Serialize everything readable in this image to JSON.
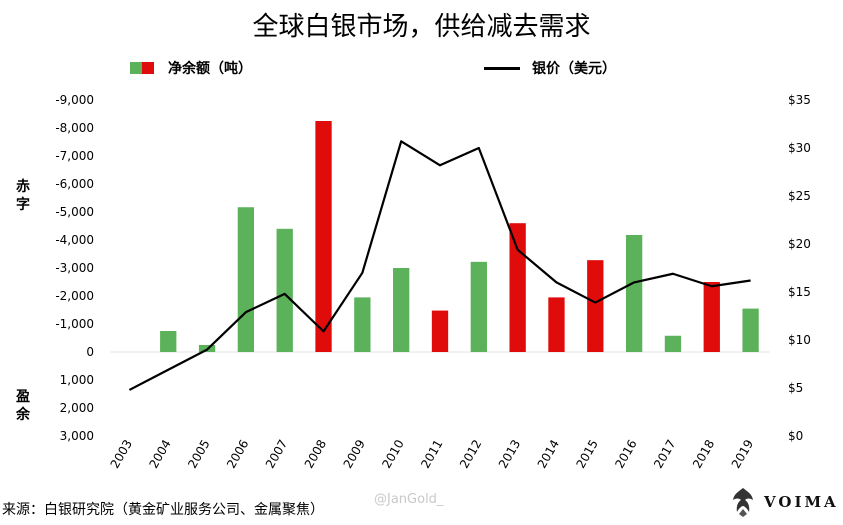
{
  "title": "全球白银市场，供给减去需求",
  "legend": {
    "bars_label": "净余额（吨）",
    "line_label": "银价（美元）",
    "green": "#5cb25a",
    "red": "#e00b0b",
    "line_color": "#000000"
  },
  "side_labels": {
    "deficit": [
      "赤",
      "字"
    ],
    "surplus": [
      "盈",
      "余"
    ]
  },
  "source_text": "来源：白银研究院（黄金矿业服务公司、金属聚焦）",
  "watermark": "@JanGold_",
  "brand": "VOIMA",
  "chart_data": {
    "type": "bar",
    "title": "全球白银市场，供给减去需求",
    "categories": [
      "2003",
      "2004",
      "2005",
      "2006",
      "2007",
      "2008",
      "2009",
      "2010",
      "2011",
      "2012",
      "2013",
      "2014",
      "2015",
      "2016",
      "2017",
      "2018",
      "2019"
    ],
    "series": [
      {
        "name": "净余额（吨）",
        "type": "bar",
        "axis": "left",
        "values": [
          0,
          -750,
          -250,
          -5170,
          -4400,
          -8250,
          -1950,
          -3000,
          -1480,
          -3220,
          -4600,
          -1950,
          -3280,
          -4180,
          -580,
          -2500,
          -1550
        ],
        "colors": [
          "green",
          "green",
          "green",
          "green",
          "green",
          "red",
          "green",
          "green",
          "red",
          "green",
          "red",
          "red",
          "red",
          "green",
          "green",
          "red",
          "green"
        ]
      },
      {
        "name": "银价（美元）",
        "type": "line",
        "axis": "right",
        "values": [
          4.8,
          6.9,
          9.0,
          12.9,
          14.8,
          10.9,
          17.0,
          30.7,
          28.2,
          30.0,
          19.4,
          16.0,
          13.9,
          16.0,
          16.9,
          15.6,
          16.2
        ]
      }
    ],
    "left_axis": {
      "ticks": [
        -9000,
        -8000,
        -7000,
        -6000,
        -5000,
        -4000,
        -3000,
        -2000,
        -1000,
        0,
        1000,
        2000,
        3000
      ],
      "tick_labels": [
        "-9,000",
        "-8,000",
        "-7,000",
        "-6,000",
        "-5,000",
        "-4,000",
        "-3,000",
        "-2,000",
        "-1,000",
        "0",
        "1,000",
        "2,000",
        "3,000"
      ],
      "range_top": -9000,
      "range_bottom": 3000
    },
    "right_axis": {
      "ticks": [
        0,
        5,
        10,
        15,
        20,
        25,
        30,
        35
      ],
      "tick_labels": [
        "$0",
        "$5",
        "$10",
        "$15",
        "$20",
        "$25",
        "$30",
        "$35"
      ],
      "range": [
        0,
        35
      ]
    },
    "xlabel": "",
    "ylabel_left": "",
    "ylabel_right": ""
  }
}
